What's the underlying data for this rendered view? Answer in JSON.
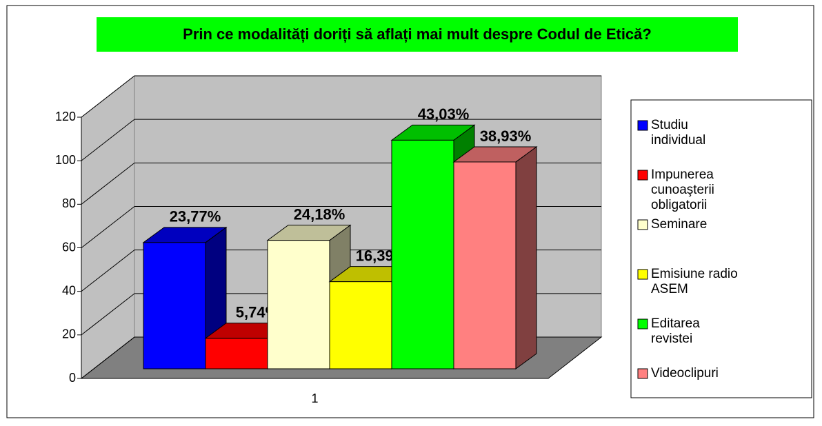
{
  "chart_data": {
    "type": "bar3d",
    "title": "Prin ce modalități doriți să aflați mai mult despre Codul de Etică?",
    "categories": [
      "1"
    ],
    "series": [
      {
        "name": "Studiu individual",
        "color": "#0000ff",
        "values": [
          58
        ],
        "value_labels": [
          "23,77%"
        ]
      },
      {
        "name": "Impunerea cunoaşterii obligatorii",
        "color": "#ff0000",
        "values": [
          14
        ],
        "value_labels": [
          "5,74%"
        ]
      },
      {
        "name": "Seminare",
        "color": "#ffffcc",
        "values": [
          59
        ],
        "value_labels": [
          "24,18%"
        ]
      },
      {
        "name": "Emisiune radio ASEM",
        "color": "#ffff00",
        "values": [
          40
        ],
        "value_labels": [
          "16,39%"
        ]
      },
      {
        "name": "Editarea revistei",
        "color": "#00ff00",
        "values": [
          105
        ],
        "value_labels": [
          "43,03%"
        ]
      },
      {
        "name": "Videoclipuri",
        "color": "#ff8080",
        "values": [
          95
        ],
        "value_labels": [
          "38,93%"
        ]
      }
    ],
    "ylim": [
      0,
      120
    ],
    "yticks": [
      0,
      20,
      40,
      60,
      80,
      100,
      120
    ],
    "grid": true,
    "legend": "right"
  }
}
